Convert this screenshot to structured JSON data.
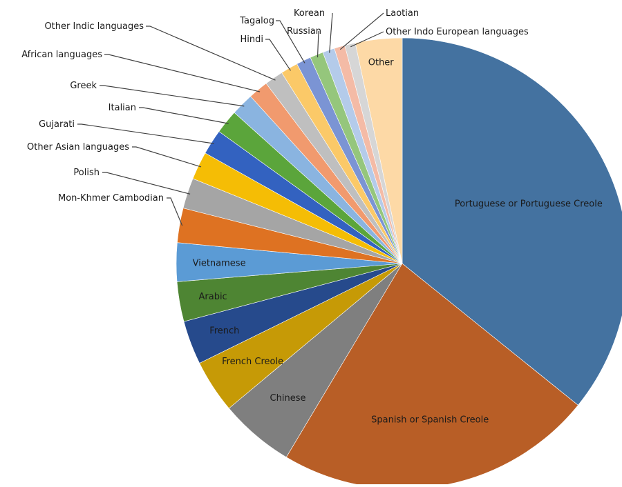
{
  "chart_data": {
    "type": "pie",
    "start": "12 o'clock",
    "direction": "clockwise",
    "slices": [
      {
        "label": "Portuguese or Portuguese Creole",
        "value": 37.6,
        "color": "#4472A0",
        "label_mode": "inside",
        "text_color": "#1a1a1a"
      },
      {
        "label": "Spanish or Spanish Creole",
        "value": 23.9,
        "color": "#B85E26",
        "label_mode": "inside",
        "text_color": "#1a1a1a"
      },
      {
        "label": "Chinese",
        "value": 5.6,
        "color": "#7F7F7F",
        "label_mode": "inside",
        "text_color": "#1a1a1a"
      },
      {
        "label": "French Creole",
        "value": 4.0,
        "color": "#C69A06",
        "label_mode": "inside",
        "text_color": "#1a1a1a"
      },
      {
        "label": "French",
        "value": 3.3,
        "color": "#264A8C",
        "label_mode": "inside",
        "text_color": "#1a1a1a"
      },
      {
        "label": "Arabic",
        "value": 3.0,
        "color": "#4E8533",
        "label_mode": "inside",
        "text_color": "#1a1a1a"
      },
      {
        "label": "Vietnamese",
        "value": 2.9,
        "color": "#5B9BD5",
        "label_mode": "inside",
        "text_color": "#1a1a1a"
      },
      {
        "label": "Mon-Khmer Cambodian",
        "value": 2.6,
        "color": "#DE7222",
        "label_mode": "outside",
        "text_color": "#1a1a1a"
      },
      {
        "label": "Polish",
        "value": 2.3,
        "color": "#A5A5A5",
        "label_mode": "outside",
        "text_color": "#1a1a1a"
      },
      {
        "label": "Other Asian languages",
        "value": 2.1,
        "color": "#F5BD05",
        "label_mode": "outside",
        "text_color": "#1a1a1a"
      },
      {
        "label": "Gujarati",
        "value": 1.9,
        "color": "#3362C0",
        "label_mode": "outside",
        "text_color": "#1a1a1a"
      },
      {
        "label": "Italian",
        "value": 1.8,
        "color": "#5BA53B",
        "label_mode": "outside",
        "text_color": "#1a1a1a"
      },
      {
        "label": "Greek",
        "value": 1.7,
        "color": "#8AB4E0",
        "label_mode": "outside",
        "text_color": "#1a1a1a"
      },
      {
        "label": "African languages",
        "value": 1.5,
        "color": "#F19A6E",
        "label_mode": "outside",
        "text_color": "#1a1a1a"
      },
      {
        "label": "Other Indic languages",
        "value": 1.4,
        "color": "#BFBFBF",
        "label_mode": "outside",
        "text_color": "#1a1a1a"
      },
      {
        "label": "Hindi",
        "value": 1.3,
        "color": "#FBC968",
        "label_mode": "outside",
        "text_color": "#1a1a1a"
      },
      {
        "label": "Tagalog",
        "value": 1.1,
        "color": "#7B94D4",
        "label_mode": "outside",
        "text_color": "#1a1a1a"
      },
      {
        "label": "Russian",
        "value": 1.0,
        "color": "#95C67C",
        "label_mode": "outside",
        "text_color": "#1a1a1a"
      },
      {
        "label": "Korean",
        "value": 0.9,
        "color": "#B4CBEA",
        "label_mode": "outside",
        "text_color": "#1a1a1a"
      },
      {
        "label": "Laotian",
        "value": 0.8,
        "color": "#F4BBA6",
        "label_mode": "outside",
        "text_color": "#1a1a1a"
      },
      {
        "label": "Other Indo European languages",
        "value": 0.8,
        "color": "#D6D6D6",
        "label_mode": "outside",
        "text_color": "#1a1a1a"
      },
      {
        "label": "Other",
        "value": 3.5,
        "color": "#FDD9A6",
        "label_mode": "inside",
        "text_color": "#1a1a1a"
      }
    ],
    "title": "",
    "legend": "none",
    "grid": false
  }
}
